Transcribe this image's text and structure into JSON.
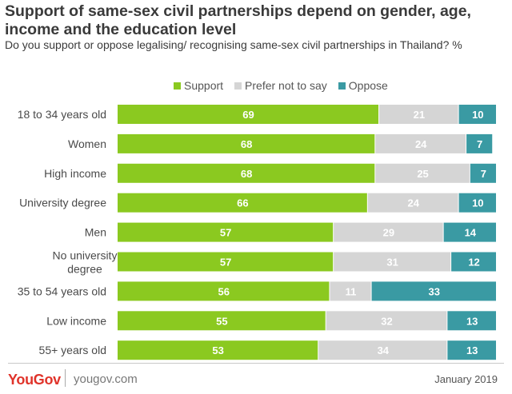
{
  "header": {
    "title": "Support of same-sex civil partnerships depend on gender, age, income and the education level",
    "subtitle": "Do you support or oppose legalising/ recognising same-sex civil partnerships in Thailand? %"
  },
  "legend": [
    {
      "label": "Support",
      "color": "#8bc920"
    },
    {
      "label": "Prefer not to say",
      "color": "#d5d5d5"
    },
    {
      "label": "Oppose",
      "color": "#3a9aa3"
    }
  ],
  "chart_data": {
    "type": "bar",
    "orientation": "horizontal",
    "stacked": true,
    "title": "Support of same-sex civil partnerships depend on gender, age, income and the education level",
    "subtitle": "Do you support or oppose legalising/ recognising same-sex civil partnerships in Thailand? %",
    "xlabel": "",
    "ylabel": "",
    "xlim": [
      0,
      100
    ],
    "legend_position": "top",
    "categories": [
      [
        "18 to 34 years old"
      ],
      [
        "Women"
      ],
      [
        "High income"
      ],
      [
        "University degree"
      ],
      [
        "Men"
      ],
      [
        "No university",
        "degree"
      ],
      [
        "35 to 54 years old"
      ],
      [
        "Low income"
      ],
      [
        "55+ years old"
      ]
    ],
    "series": [
      {
        "name": "Support",
        "color": "#8bc920",
        "label_color": "#ffffff",
        "values": [
          69,
          68,
          68,
          66,
          57,
          57,
          56,
          55,
          53
        ]
      },
      {
        "name": "Prefer not to say",
        "color": "#d5d5d5",
        "label_color": "#ffffff",
        "values": [
          21,
          24,
          25,
          24,
          29,
          31,
          11,
          32,
          34
        ]
      },
      {
        "name": "Oppose",
        "color": "#3a9aa3",
        "label_color": "#ffffff",
        "values": [
          10,
          7,
          7,
          10,
          14,
          12,
          33,
          13,
          13
        ]
      }
    ]
  },
  "footer": {
    "brand": "YouGov",
    "site": "yougov.com",
    "date": "January 2019"
  }
}
